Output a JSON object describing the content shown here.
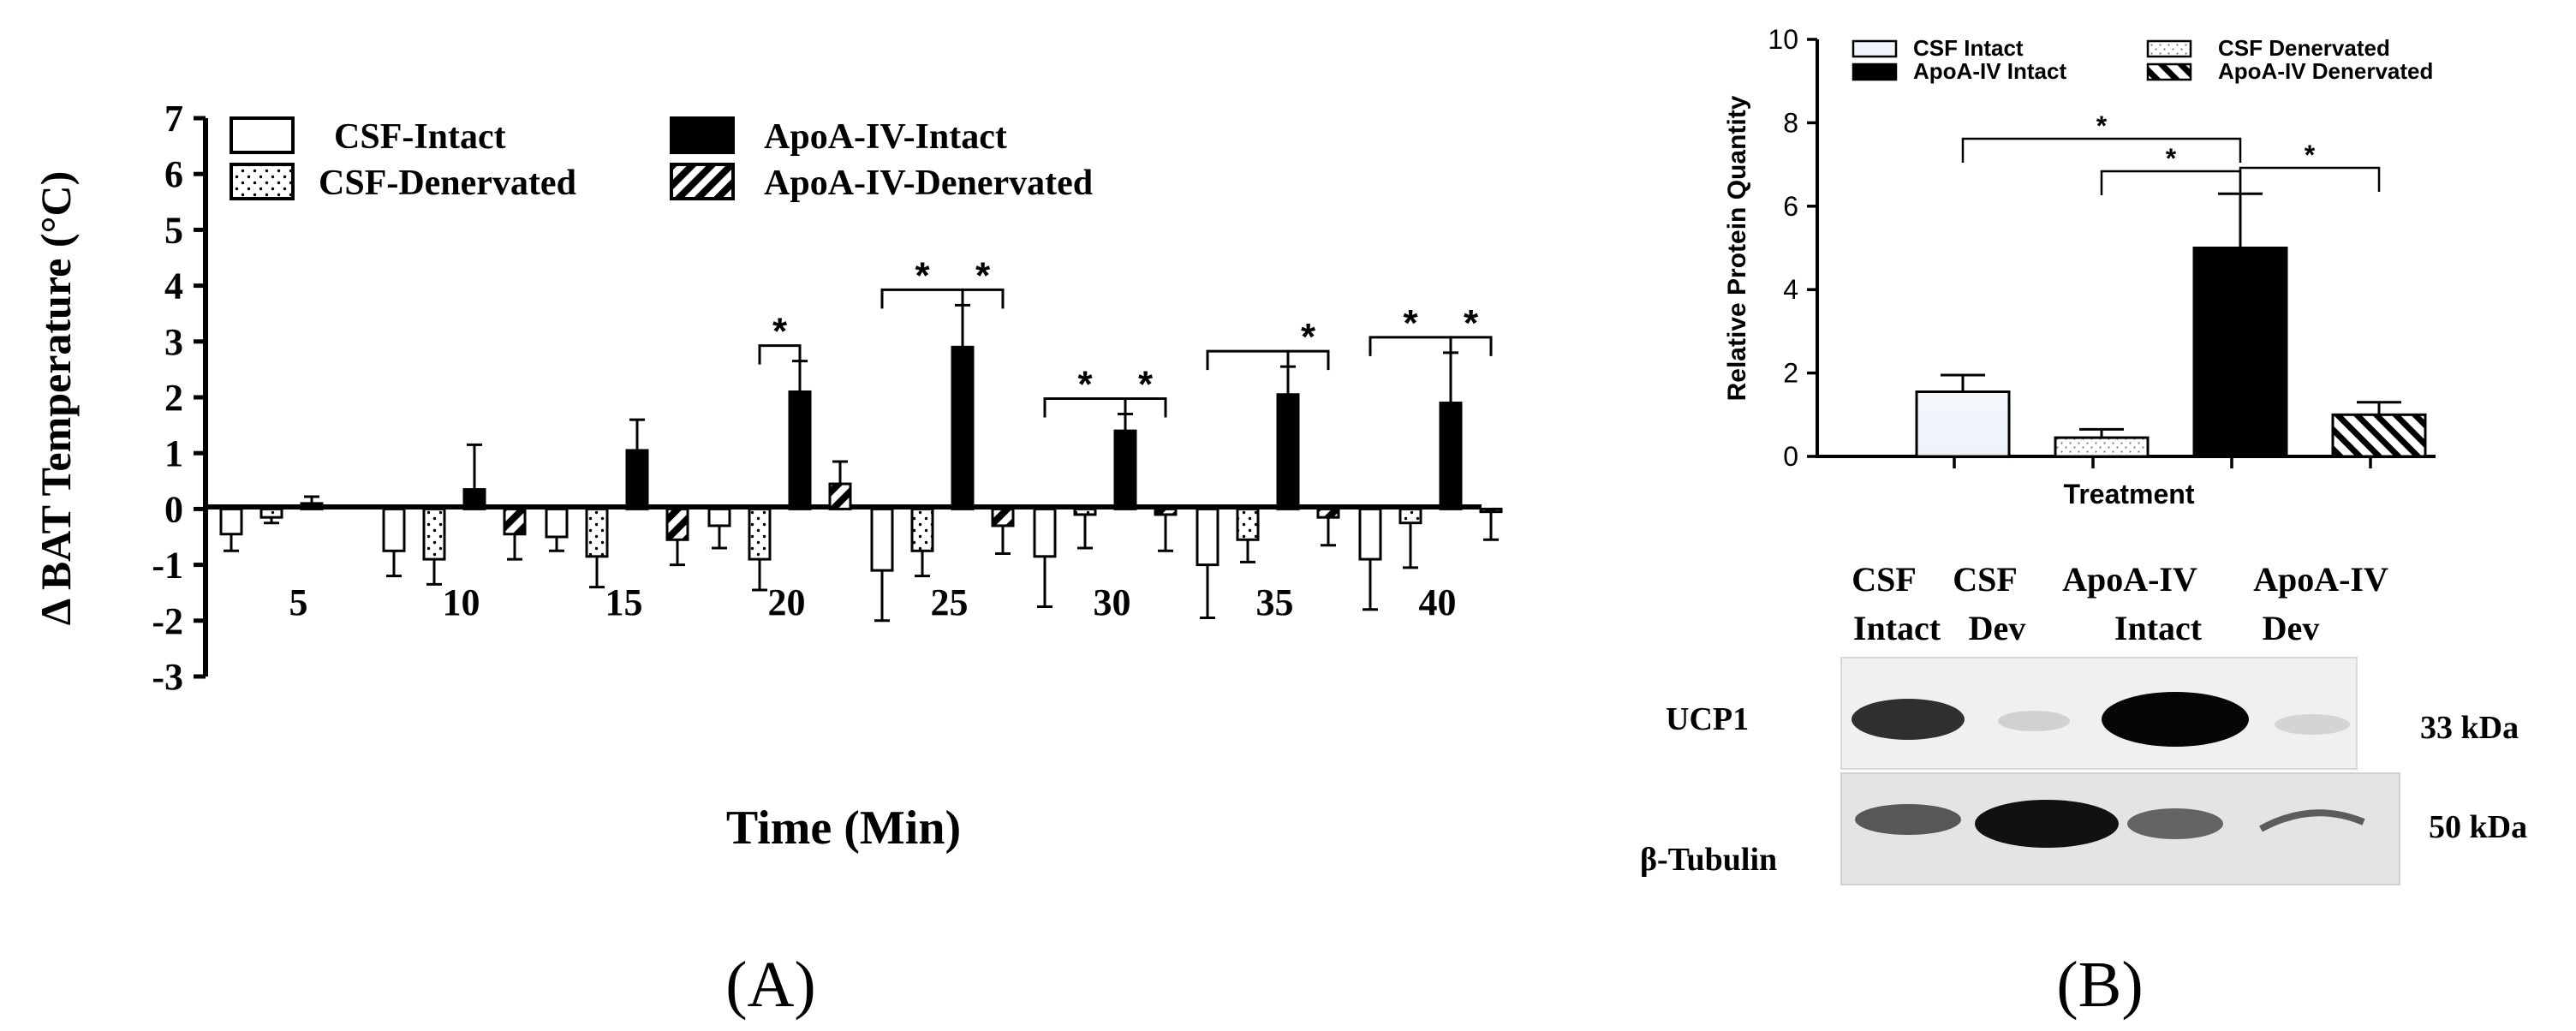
{
  "panelA": {
    "panel_label": "(A)",
    "chart_data": {
      "type": "bar",
      "title": "",
      "xlabel": "Time (Min)",
      "ylabel": "Δ BAT Temperature (°C)",
      "ylim": [
        -3,
        7
      ],
      "yticks": [
        "-3",
        "-2",
        "-1",
        "0",
        "1",
        "2",
        "3",
        "4",
        "5",
        "6",
        "7"
      ],
      "categories": [
        "5",
        "10",
        "15",
        "20",
        "25",
        "30",
        "35",
        "40"
      ],
      "series": [
        {
          "name": "CSF-Intact",
          "pattern": "open",
          "values": [
            -0.45,
            -0.75,
            -0.5,
            -0.3,
            -1.1,
            -0.85,
            -1.0,
            -0.9
          ],
          "errors": [
            0.3,
            0.45,
            0.25,
            0.4,
            0.9,
            0.9,
            0.95,
            0.9
          ]
        },
        {
          "name": "CSF-Denervated",
          "pattern": "dotted",
          "values": [
            -0.15,
            -0.9,
            -0.85,
            -0.9,
            -0.75,
            -0.1,
            -0.55,
            -0.25
          ],
          "errors": [
            0.1,
            0.45,
            0.55,
            0.55,
            0.45,
            0.6,
            0.4,
            0.8
          ]
        },
        {
          "name": "ApoA-IV-Intact",
          "pattern": "solid",
          "values": [
            0.1,
            0.35,
            1.05,
            2.1,
            2.9,
            1.4,
            2.05,
            1.9
          ],
          "errors": [
            0.12,
            0.8,
            0.55,
            0.55,
            0.75,
            0.3,
            0.5,
            0.9
          ]
        },
        {
          "name": "ApoA-IV-Denervated",
          "pattern": "hatched",
          "values": [
            null,
            -0.45,
            -0.55,
            0.45,
            -0.3,
            -0.1,
            -0.15,
            -0.05
          ],
          "errors": [
            null,
            0.45,
            0.45,
            0.4,
            0.5,
            0.65,
            0.5,
            0.5
          ]
        }
      ],
      "significance": [
        {
          "category": "20",
          "from": "CSF-Denervated",
          "to": "ApoA-IV-Intact",
          "label": "*"
        },
        {
          "category": "25",
          "from": "CSF-Intact",
          "to": "ApoA-IV-Intact",
          "label": "*"
        },
        {
          "category": "25",
          "from": "ApoA-IV-Intact",
          "to": "ApoA-IV-Denervated",
          "label": "*"
        },
        {
          "category": "30",
          "from": "CSF-Intact",
          "to": "ApoA-IV-Intact",
          "label": "*"
        },
        {
          "category": "30",
          "from": "ApoA-IV-Intact",
          "to": "ApoA-IV-Denervated",
          "label": "*"
        },
        {
          "category": "35",
          "from": "CSF-Intact",
          "to": "ApoA-IV-Intact",
          "label": ""
        },
        {
          "category": "35",
          "from": "ApoA-IV-Intact",
          "to": "ApoA-IV-Denervated",
          "label": "*"
        },
        {
          "category": "40",
          "from": "CSF-Intact",
          "to": "ApoA-IV-Intact",
          "label": "*"
        },
        {
          "category": "40",
          "from": "ApoA-IV-Intact",
          "to": "ApoA-IV-Denervated",
          "label": "*"
        }
      ],
      "legend_position": "top"
    }
  },
  "panelB": {
    "panel_label": "(B)",
    "chart_data": {
      "type": "bar",
      "title": "",
      "xlabel": "Treatment",
      "ylabel": "Relative Protein Quantity",
      "ylim": [
        0,
        10
      ],
      "yticks": [
        "0",
        "2",
        "4",
        "6",
        "8",
        "10"
      ],
      "categories": [
        "CSF Intact",
        "CSF Denervated",
        "ApoA-IV Intact",
        "ApoA-IV Denervated"
      ],
      "values": [
        1.55,
        0.45,
        5.0,
        1.0
      ],
      "errors": [
        0.4,
        0.2,
        1.3,
        0.3
      ],
      "patterns": [
        "open",
        "dotted",
        "solid",
        "hatched"
      ],
      "significance": [
        {
          "from": "CSF Intact",
          "to": "ApoA-IV Intact",
          "label": "*"
        },
        {
          "from": "CSF Denervated",
          "to": "ApoA-IV Intact",
          "label": "*"
        },
        {
          "from": "ApoA-IV Intact",
          "to": "ApoA-IV Denervated",
          "label": "*"
        }
      ],
      "legend_position": "top"
    },
    "blot": {
      "lane_headers": [
        {
          "line1": "CSF",
          "line2": "Intact"
        },
        {
          "line1": "CSF",
          "line2": "Dev"
        },
        {
          "line1": "ApoA-IV",
          "line2": "Intact"
        },
        {
          "line1": "ApoA-IV",
          "line2": "Dev"
        }
      ],
      "rows": [
        {
          "protein": "UCP1",
          "size": "33 kDa"
        },
        {
          "protein": "β-Tubulin",
          "size": "50 kDa"
        }
      ]
    }
  }
}
